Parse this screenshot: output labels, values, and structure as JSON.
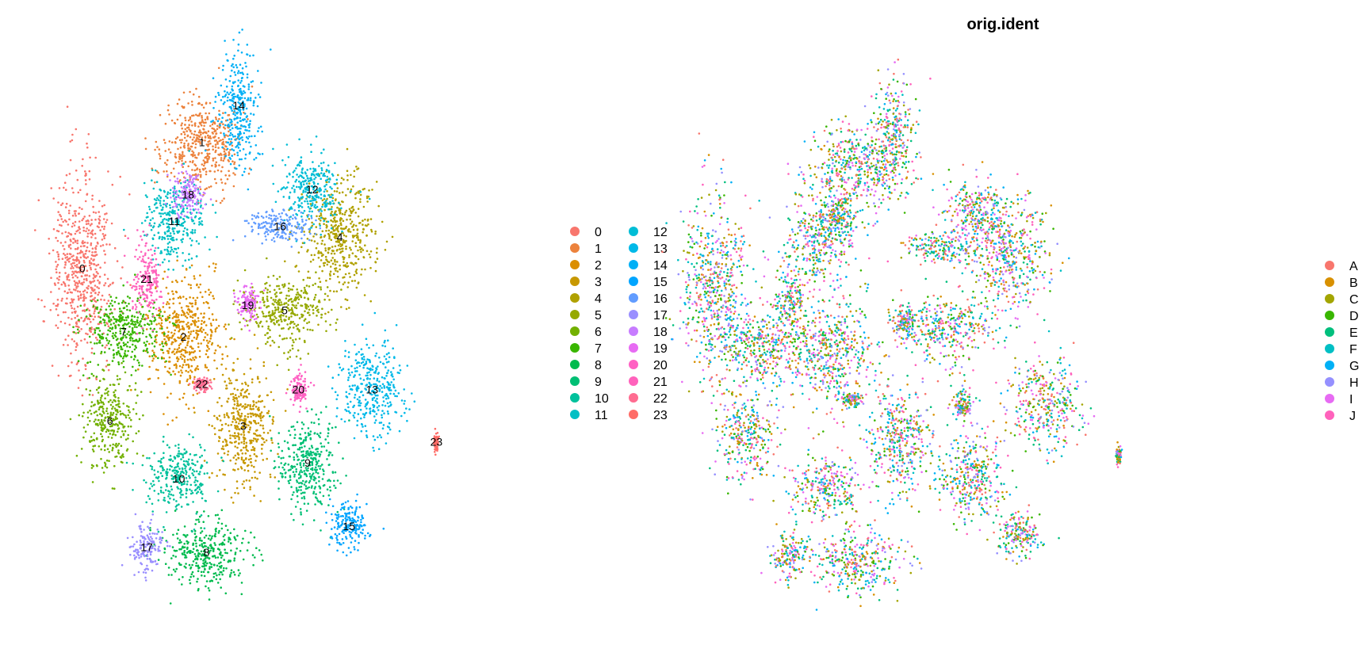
{
  "chart_data": [
    {
      "type": "scatter",
      "title": "",
      "xlabel": "",
      "ylabel": "",
      "grid": false,
      "axes": false,
      "legend_position": "right",
      "color_by": "cluster",
      "categories": [
        "0",
        "1",
        "2",
        "3",
        "4",
        "5",
        "6",
        "7",
        "8",
        "9",
        "10",
        "11",
        "12",
        "13",
        "14",
        "15",
        "16",
        "17",
        "18",
        "19",
        "20",
        "21",
        "22",
        "23"
      ],
      "colors": [
        "#F8766D",
        "#EC823C",
        "#DB8E00",
        "#C79800",
        "#B0A100",
        "#96A900",
        "#72B000",
        "#39B600",
        "#00BB4E",
        "#00BF74",
        "#00C19C",
        "#00BFC4",
        "#00BDD6",
        "#00B9E8",
        "#00B0F6",
        "#00A5FF",
        "#619CFF",
        "#9A8FFF",
        "#C77CFF",
        "#E76BF3",
        "#FF61C3",
        "#FF62BC",
        "#FF6C91",
        "#FF6C67"
      ],
      "clusters": [
        {
          "label": "0",
          "x": -14.5,
          "y": 7.5,
          "spread": [
            3,
            8
          ]
        },
        {
          "label": "1",
          "x": -1.5,
          "y": 19.5,
          "spread": [
            4,
            4
          ]
        },
        {
          "label": "2",
          "x": -3.5,
          "y": 1,
          "spread": [
            3.5,
            5
          ]
        },
        {
          "label": "3",
          "x": 3,
          "y": -7.5,
          "spread": [
            3,
            5
          ]
        },
        {
          "label": "4",
          "x": 13.5,
          "y": 10.5,
          "spread": [
            3.5,
            5
          ]
        },
        {
          "label": "5",
          "x": 7.5,
          "y": 3.5,
          "spread": [
            4,
            3
          ]
        },
        {
          "label": "6",
          "x": -11.5,
          "y": -7,
          "spread": [
            2.5,
            4
          ]
        },
        {
          "label": "7",
          "x": -10,
          "y": 1.5,
          "spread": [
            4,
            3
          ]
        },
        {
          "label": "8",
          "x": -1,
          "y": -19.5,
          "spread": [
            4,
            3
          ]
        },
        {
          "label": "9",
          "x": 10,
          "y": -11,
          "spread": [
            3,
            4
          ]
        },
        {
          "label": "10",
          "x": -4,
          "y": -12.5,
          "spread": [
            3,
            3
          ]
        },
        {
          "label": "11",
          "x": -4.5,
          "y": 12,
          "spread": [
            3,
            3.5
          ]
        },
        {
          "label": "12",
          "x": 10.5,
          "y": 15,
          "spread": [
            3,
            3
          ]
        },
        {
          "label": "13",
          "x": 17,
          "y": -4,
          "spread": [
            3,
            4
          ]
        },
        {
          "label": "14",
          "x": 2.5,
          "y": 23,
          "spread": [
            2,
            5
          ]
        },
        {
          "label": "15",
          "x": 14.5,
          "y": -17,
          "spread": [
            2,
            2
          ]
        },
        {
          "label": "16",
          "x": 7,
          "y": 11.5,
          "spread": [
            3,
            1.5
          ]
        },
        {
          "label": "17",
          "x": -7.5,
          "y": -19,
          "spread": [
            1.5,
            2
          ]
        },
        {
          "label": "18",
          "x": -3,
          "y": 14.5,
          "spread": [
            1.5,
            2
          ]
        },
        {
          "label": "19",
          "x": 3.5,
          "y": 4,
          "spread": [
            1,
            1.5
          ]
        },
        {
          "label": "20",
          "x": 9,
          "y": -4,
          "spread": [
            0.8,
            1.5
          ]
        },
        {
          "label": "21",
          "x": -7.5,
          "y": 6.5,
          "spread": [
            1.5,
            3
          ]
        },
        {
          "label": "22",
          "x": -1.5,
          "y": -3.5,
          "spread": [
            0.8,
            0.6
          ]
        },
        {
          "label": "23",
          "x": 24,
          "y": -9,
          "spread": [
            0.2,
            0.8
          ]
        }
      ],
      "xlim": [
        -20,
        30
      ],
      "ylim": [
        -25,
        30
      ]
    },
    {
      "type": "scatter",
      "title": "orig.ident",
      "xlabel": "",
      "ylabel": "",
      "grid": false,
      "axes": false,
      "legend_position": "right",
      "color_by": "orig.ident",
      "categories": [
        "A",
        "B",
        "C",
        "D",
        "E",
        "F",
        "G",
        "H",
        "I",
        "J"
      ],
      "colors": [
        "#F8766D",
        "#D89000",
        "#A3A500",
        "#39B600",
        "#00BF7D",
        "#00BFC4",
        "#00B0F6",
        "#9590FF",
        "#E76BF3",
        "#FF62BC"
      ],
      "xlim": [
        -20,
        30
      ],
      "ylim": [
        -25,
        30
      ]
    }
  ]
}
